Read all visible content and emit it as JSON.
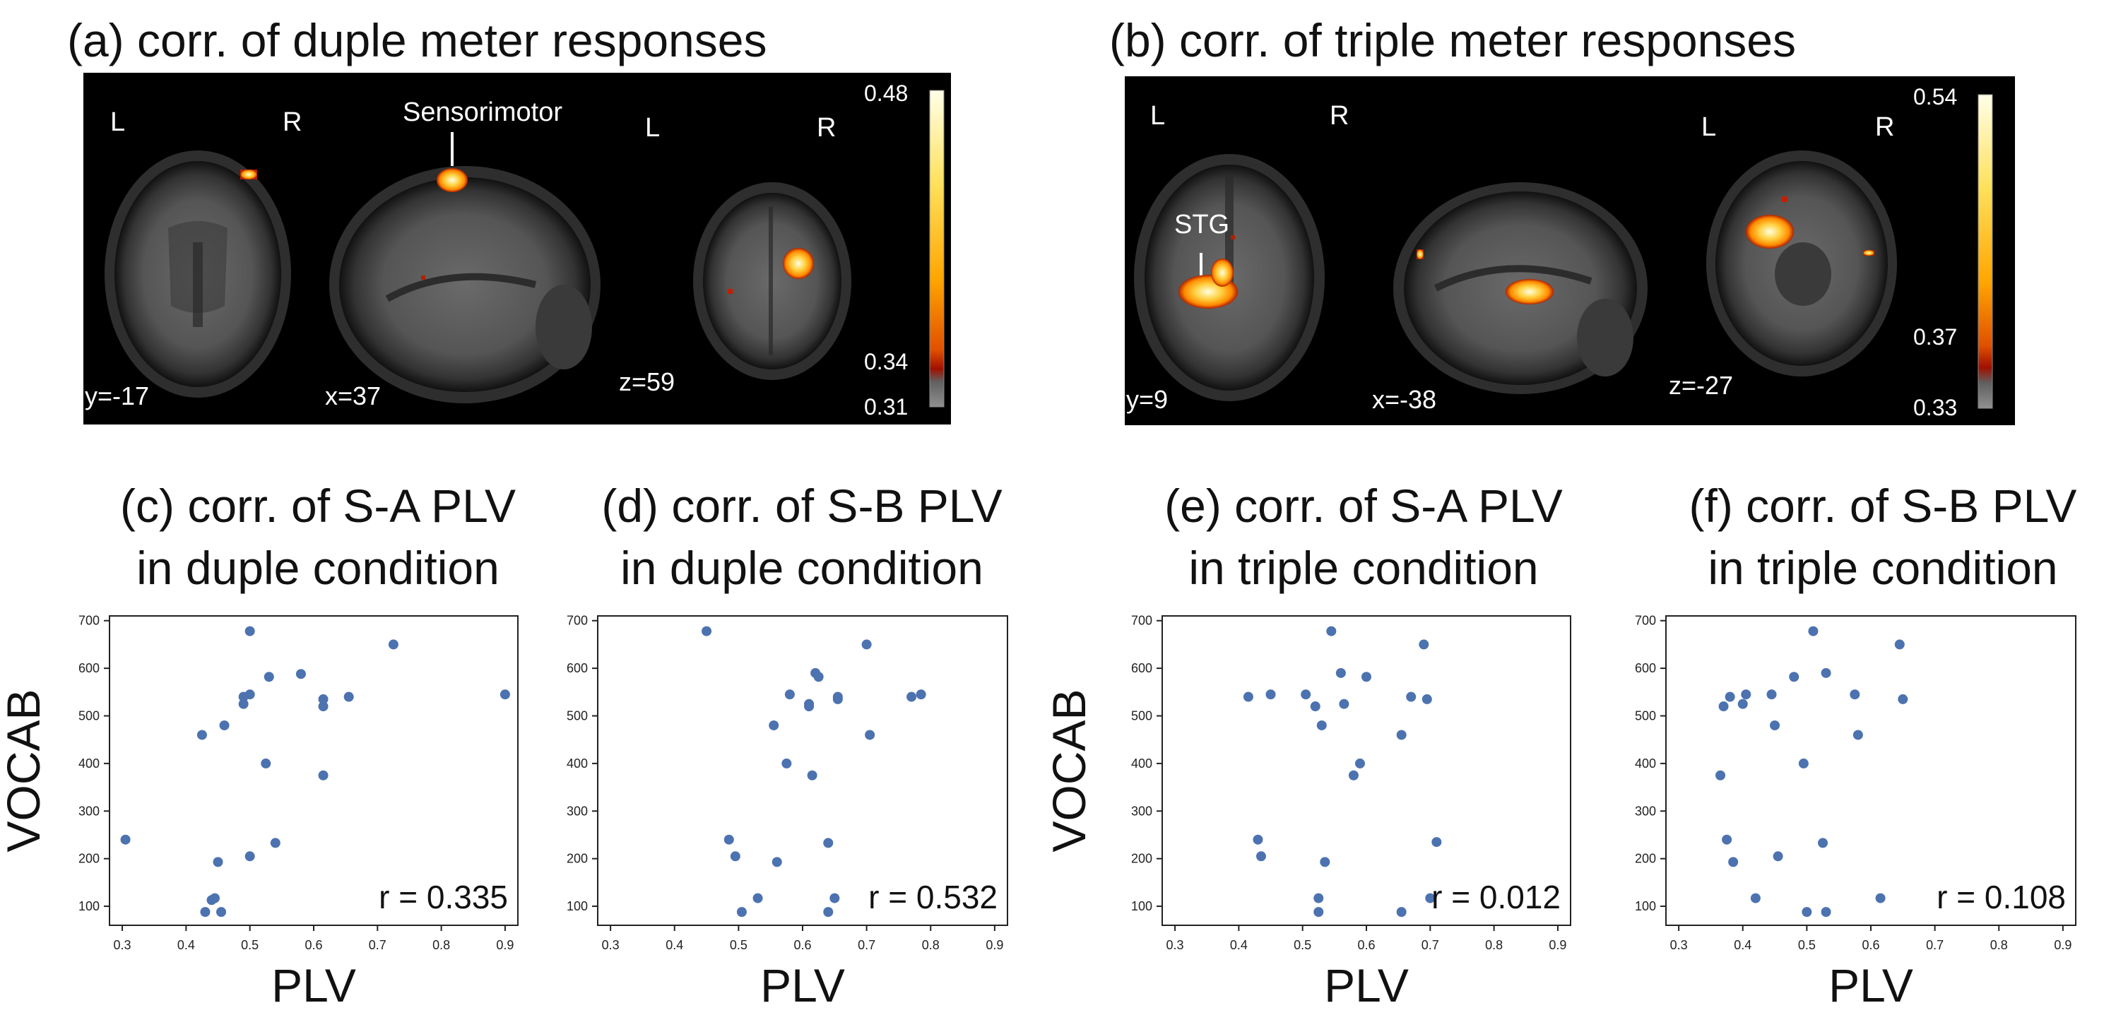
{
  "brain": {
    "a": {
      "title": "(a) corr. of duple meter responses",
      "views": [
        {
          "lr": [
            "L",
            "R"
          ],
          "coord": "y=-17"
        },
        {
          "label": "Sensorimotor",
          "coord": "x=37"
        },
        {
          "lr": [
            "L",
            "R"
          ],
          "coord": "z=59"
        }
      ],
      "colorbar": {
        "max": "0.48",
        "mid": "0.34",
        "min": "0.31"
      }
    },
    "b": {
      "title": "(b) corr. of triple meter responses",
      "views": [
        {
          "lr": [
            "L",
            "R"
          ],
          "label": "STG",
          "coord": "y=9"
        },
        {
          "coord": "x=-38"
        },
        {
          "lr": [
            "L",
            "R"
          ],
          "coord": "z=-27"
        }
      ],
      "colorbar": {
        "max": "0.54",
        "mid": "0.37",
        "min": "0.33"
      }
    }
  },
  "colors": {
    "point": "#4c72b0",
    "heat_low": "#a01000",
    "heat_mid": "#ffa000",
    "heat_high": "#ffffe0"
  },
  "chart_data": [
    {
      "type": "scatter",
      "title_line1": "(c) corr. of S-A PLV",
      "title_line2": "in duple condition",
      "xlabel": "PLV",
      "ylabel": "VOCAB",
      "annotation": "r = 0.335",
      "xlim": [
        0.28,
        0.92
      ],
      "ylim": [
        60,
        710
      ],
      "xticks": [
        0.3,
        0.4,
        0.5,
        0.6,
        0.7,
        0.8,
        0.9
      ],
      "yticks": [
        100,
        200,
        300,
        400,
        500,
        600,
        700
      ],
      "points": [
        [
          0.305,
          240
        ],
        [
          0.425,
          460
        ],
        [
          0.43,
          88
        ],
        [
          0.44,
          113
        ],
        [
          0.445,
          117
        ],
        [
          0.45,
          193
        ],
        [
          0.455,
          88
        ],
        [
          0.46,
          480
        ],
        [
          0.49,
          525
        ],
        [
          0.49,
          540
        ],
        [
          0.5,
          678
        ],
        [
          0.5,
          545
        ],
        [
          0.5,
          205
        ],
        [
          0.525,
          400
        ],
        [
          0.53,
          582
        ],
        [
          0.54,
          233
        ],
        [
          0.58,
          588
        ],
        [
          0.615,
          535
        ],
        [
          0.615,
          520
        ],
        [
          0.615,
          375
        ],
        [
          0.655,
          540
        ],
        [
          0.725,
          650
        ],
        [
          0.9,
          545
        ]
      ]
    },
    {
      "type": "scatter",
      "title_line1": "(d) corr. of S-B PLV",
      "title_line2": "in duple condition",
      "xlabel": "PLV",
      "ylabel": "",
      "annotation": "r = 0.532",
      "xlim": [
        0.28,
        0.92
      ],
      "ylim": [
        60,
        710
      ],
      "xticks": [
        0.3,
        0.4,
        0.5,
        0.6,
        0.7,
        0.8,
        0.9
      ],
      "yticks": [
        100,
        200,
        300,
        400,
        500,
        600,
        700
      ],
      "points": [
        [
          0.45,
          678
        ],
        [
          0.485,
          240
        ],
        [
          0.495,
          205
        ],
        [
          0.505,
          88
        ],
        [
          0.53,
          117
        ],
        [
          0.555,
          480
        ],
        [
          0.56,
          193
        ],
        [
          0.575,
          400
        ],
        [
          0.58,
          545
        ],
        [
          0.61,
          525
        ],
        [
          0.61,
          520
        ],
        [
          0.615,
          375
        ],
        [
          0.62,
          590
        ],
        [
          0.625,
          582
        ],
        [
          0.64,
          233
        ],
        [
          0.64,
          88
        ],
        [
          0.655,
          540
        ],
        [
          0.655,
          535
        ],
        [
          0.65,
          117
        ],
        [
          0.7,
          650
        ],
        [
          0.705,
          460
        ],
        [
          0.77,
          540
        ],
        [
          0.785,
          545
        ]
      ]
    },
    {
      "type": "scatter",
      "title_line1": "(e) corr. of S-A PLV",
      "title_line2": "in triple condition",
      "xlabel": "PLV",
      "ylabel": "VOCAB",
      "annotation": "r = 0.012",
      "xlim": [
        0.28,
        0.92
      ],
      "ylim": [
        60,
        710
      ],
      "xticks": [
        0.3,
        0.4,
        0.5,
        0.6,
        0.7,
        0.8,
        0.9
      ],
      "yticks": [
        100,
        200,
        300,
        400,
        500,
        600,
        700
      ],
      "points": [
        [
          0.415,
          540
        ],
        [
          0.43,
          240
        ],
        [
          0.435,
          205
        ],
        [
          0.45,
          545
        ],
        [
          0.505,
          545
        ],
        [
          0.52,
          520
        ],
        [
          0.525,
          117
        ],
        [
          0.525,
          88
        ],
        [
          0.53,
          480
        ],
        [
          0.535,
          193
        ],
        [
          0.545,
          678
        ],
        [
          0.56,
          590
        ],
        [
          0.565,
          525
        ],
        [
          0.58,
          375
        ],
        [
          0.59,
          400
        ],
        [
          0.6,
          582
        ],
        [
          0.655,
          460
        ],
        [
          0.655,
          88
        ],
        [
          0.67,
          540
        ],
        [
          0.69,
          650
        ],
        [
          0.695,
          535
        ],
        [
          0.7,
          117
        ],
        [
          0.71,
          235
        ]
      ]
    },
    {
      "type": "scatter",
      "title_line1": "(f) corr. of S-B PLV",
      "title_line2": "in triple condition",
      "xlabel": "PLV",
      "ylabel": "",
      "annotation": "r = 0.108",
      "xlim": [
        0.28,
        0.92
      ],
      "ylim": [
        60,
        710
      ],
      "xticks": [
        0.3,
        0.4,
        0.5,
        0.6,
        0.7,
        0.8,
        0.9
      ],
      "yticks": [
        100,
        200,
        300,
        400,
        500,
        600,
        700
      ],
      "points": [
        [
          0.365,
          375
        ],
        [
          0.37,
          520
        ],
        [
          0.375,
          240
        ],
        [
          0.38,
          540
        ],
        [
          0.385,
          193
        ],
        [
          0.4,
          525
        ],
        [
          0.405,
          545
        ],
        [
          0.42,
          117
        ],
        [
          0.445,
          545
        ],
        [
          0.45,
          480
        ],
        [
          0.455,
          205
        ],
        [
          0.48,
          582
        ],
        [
          0.495,
          400
        ],
        [
          0.5,
          88
        ],
        [
          0.51,
          678
        ],
        [
          0.525,
          233
        ],
        [
          0.53,
          590
        ],
        [
          0.53,
          88
        ],
        [
          0.575,
          545
        ],
        [
          0.58,
          460
        ],
        [
          0.615,
          117
        ],
        [
          0.645,
          650
        ],
        [
          0.65,
          535
        ]
      ]
    }
  ]
}
